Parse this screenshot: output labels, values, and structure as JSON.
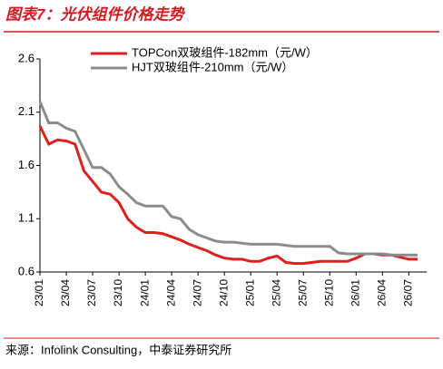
{
  "chart_data": {
    "type": "line",
    "title": "图表7：光伏组件价格走势",
    "source": "来源：Infolink Consulting，中泰证券研究所",
    "categories": [
      "23/01",
      null,
      null,
      "23/04",
      null,
      null,
      "23/07",
      null,
      null,
      "23/10",
      null,
      null,
      "24/01",
      null,
      null,
      "24/04",
      null,
      null,
      "24/07",
      null,
      null,
      "24/10",
      null,
      null,
      "25/01",
      null,
      null,
      "25/04",
      null,
      null,
      "25/07",
      null,
      null,
      "25/10",
      null,
      null,
      "26/01",
      null,
      null,
      "26/04",
      null,
      null,
      "26/07",
      null
    ],
    "series": [
      {
        "name": "TOPCon双玻组件-182mm（元/W）",
        "color": "#e0201b",
        "values": [
          1.97,
          1.8,
          1.84,
          1.83,
          1.8,
          1.55,
          1.45,
          1.35,
          1.33,
          1.25,
          1.1,
          1.02,
          0.97,
          0.97,
          0.96,
          0.93,
          0.9,
          0.86,
          0.83,
          0.8,
          0.76,
          0.73,
          0.72,
          0.72,
          0.7,
          0.7,
          0.73,
          0.75,
          0.69,
          0.68,
          0.68,
          0.69,
          0.7,
          0.7,
          0.7,
          0.7,
          0.73,
          0.77,
          0.77,
          0.76,
          0.76,
          0.74,
          0.72,
          0.72
        ]
      },
      {
        "name": "HJT双玻组件-210mm（元/W）",
        "color": "#8c8c8c",
        "values": [
          2.2,
          2.0,
          2.0,
          1.95,
          1.92,
          1.75,
          1.58,
          1.58,
          1.52,
          1.4,
          1.33,
          1.25,
          1.22,
          1.22,
          1.22,
          1.12,
          1.1,
          1.0,
          0.95,
          0.92,
          0.89,
          0.88,
          0.88,
          0.87,
          0.86,
          0.86,
          0.86,
          0.86,
          0.85,
          0.84,
          0.84,
          0.84,
          0.84,
          0.84,
          0.78,
          0.77,
          0.77,
          0.77,
          0.77,
          0.77,
          0.76,
          0.76,
          0.76,
          0.76
        ]
      }
    ],
    "ylim": [
      0.6,
      2.6
    ],
    "yticks": [
      2.6,
      2.1,
      1.6,
      1.1,
      0.6
    ],
    "grid": false
  }
}
